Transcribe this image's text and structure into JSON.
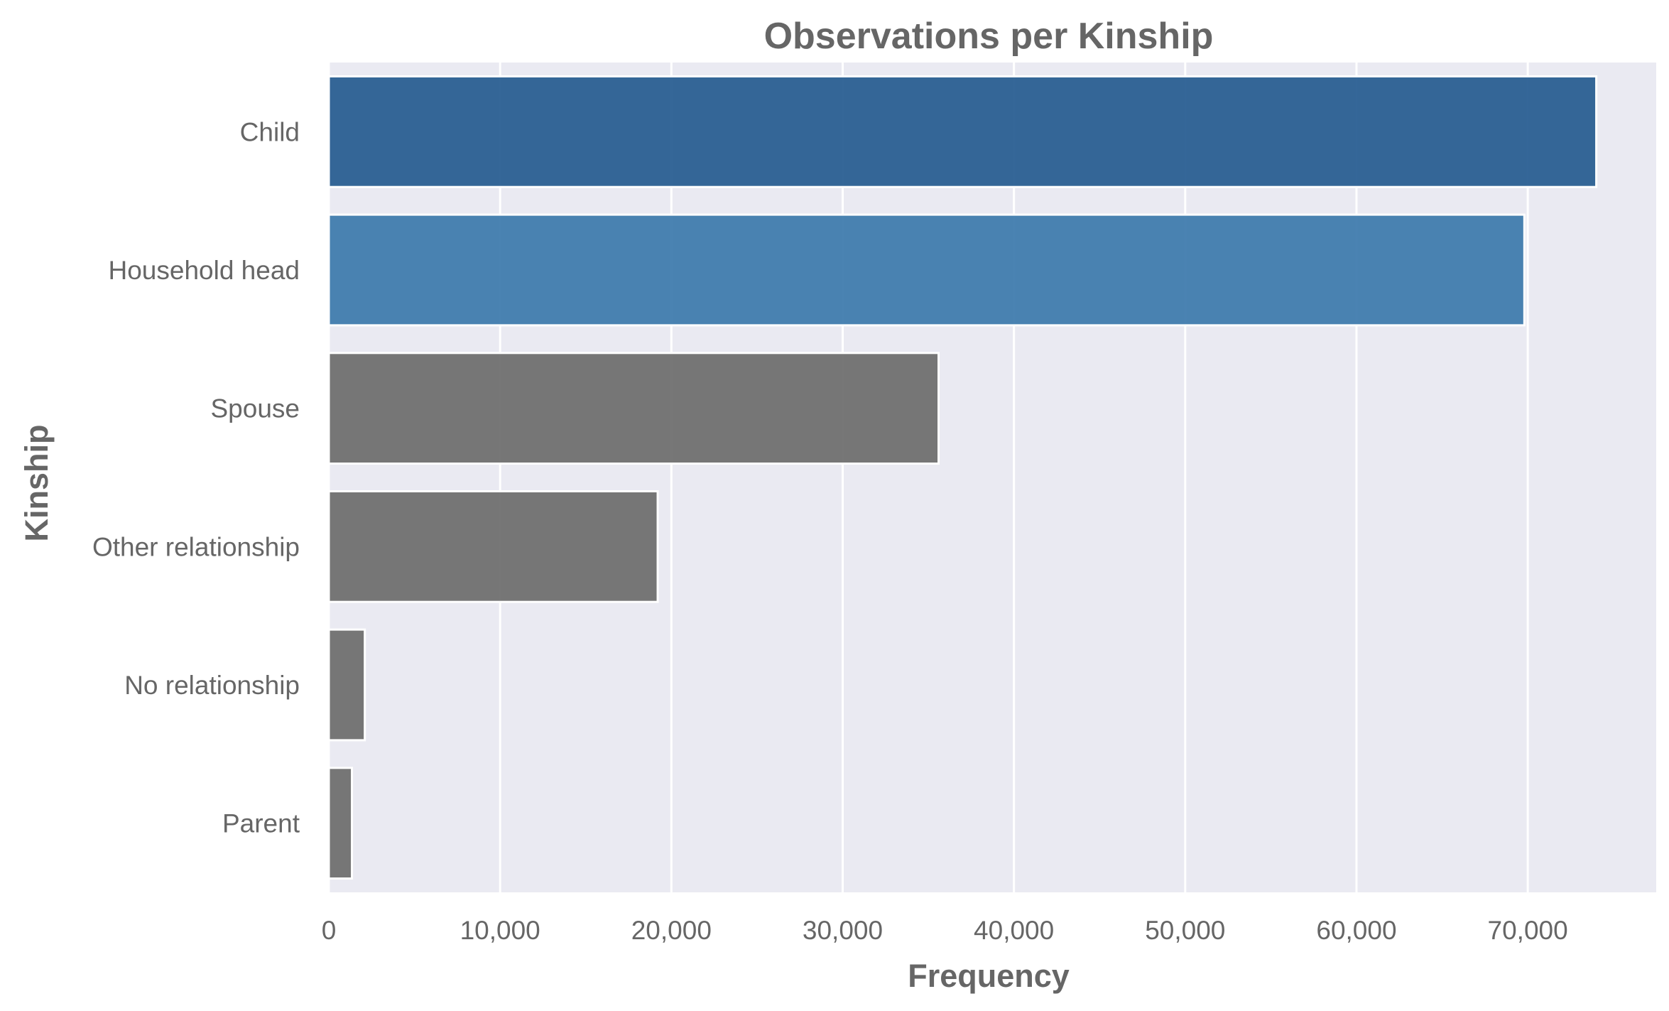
{
  "chart_data": {
    "type": "bar",
    "orientation": "horizontal",
    "title": "Observations per Kinship",
    "xlabel": "Frequency",
    "ylabel": "Kinship",
    "categories": [
      "Child",
      "Household head",
      "Spouse",
      "Other relationship",
      "No relationship",
      "Parent"
    ],
    "values": [
      74000,
      69800,
      35600,
      19200,
      2100,
      1350
    ],
    "bar_colors": [
      "#245a8f",
      "#3b78ab",
      "#6b6b6b",
      "#6b6b6b",
      "#6b6b6b",
      "#6b6b6b"
    ],
    "xlim": [
      0,
      77500
    ],
    "xticks": [
      0,
      10000,
      20000,
      30000,
      40000,
      50000,
      60000,
      70000
    ],
    "xtick_labels": [
      "0",
      "10,000",
      "20,000",
      "30,000",
      "40,000",
      "50,000",
      "60,000",
      "70,000"
    ],
    "grid": true,
    "plot_background": "#eaeaf2",
    "grid_color": "#ffffff"
  }
}
